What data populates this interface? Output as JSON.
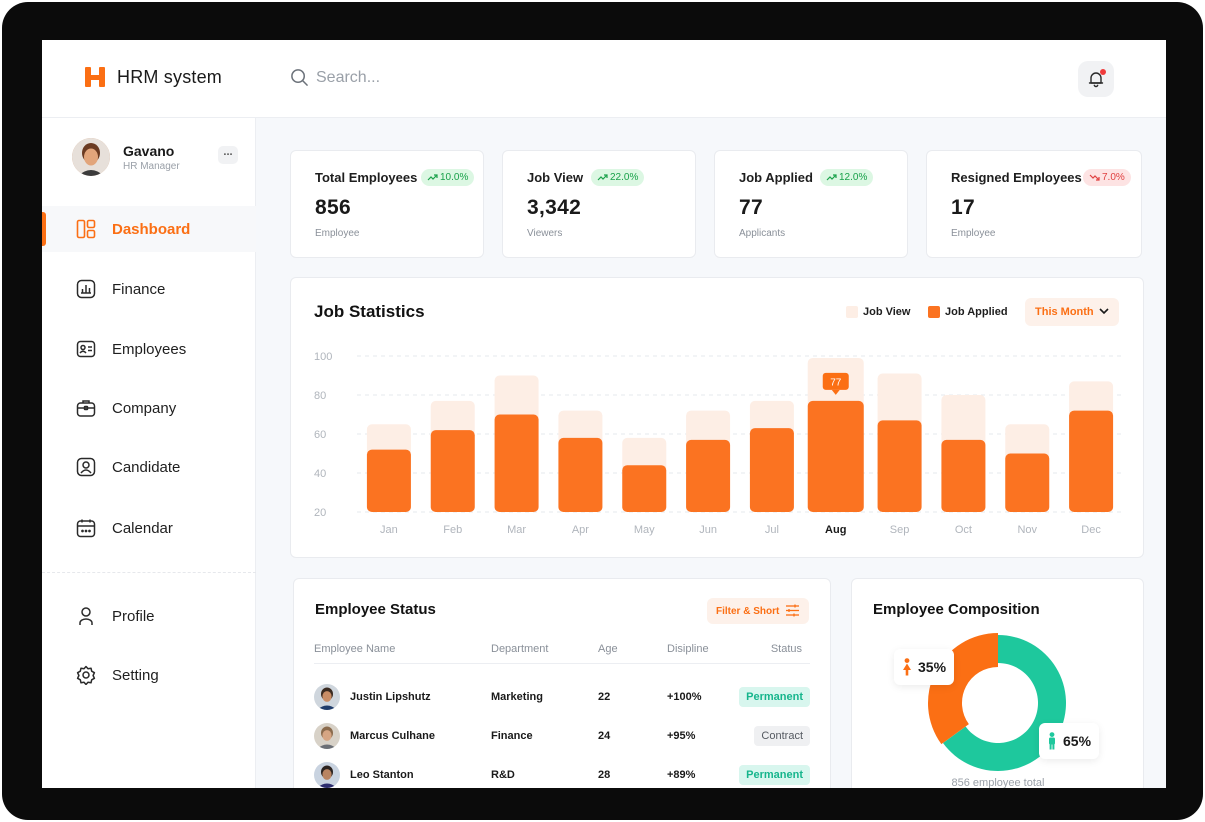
{
  "app": {
    "name": "HRM system"
  },
  "search": {
    "placeholder": "Search..."
  },
  "user": {
    "name": "Gavano",
    "role": "HR Manager",
    "more": "..."
  },
  "nav": {
    "main": [
      {
        "label": "Dashboard",
        "icon": "dashboard-icon",
        "active": true
      },
      {
        "label": "Finance",
        "icon": "finance-icon"
      },
      {
        "label": "Employees",
        "icon": "employees-icon"
      },
      {
        "label": "Company",
        "icon": "company-icon"
      },
      {
        "label": "Candidate",
        "icon": "candidate-icon"
      },
      {
        "label": "Calendar",
        "icon": "calendar-icon"
      }
    ],
    "bottom": [
      {
        "label": "Profile",
        "icon": "profile-icon"
      },
      {
        "label": "Setting",
        "icon": "gear-icon"
      }
    ]
  },
  "stats": [
    {
      "title": "Total Employees",
      "change": "10.0%",
      "trend": "up",
      "value": "856",
      "sub": "Employee"
    },
    {
      "title": "Job View",
      "change": "22.0%",
      "trend": "up",
      "value": "3,342",
      "sub": "Viewers"
    },
    {
      "title": "Job Applied",
      "change": "12.0%",
      "trend": "up",
      "value": "77",
      "sub": "Applicants"
    },
    {
      "title": "Resigned Employees",
      "change": "7.0%",
      "trend": "down",
      "value": "17",
      "sub": "Employee"
    }
  ],
  "job_stats": {
    "title": "Job Statistics",
    "legend": {
      "view": "Job View",
      "applied": "Job Applied"
    },
    "period": "This Month",
    "highlight_label": "77"
  },
  "chart_data": {
    "type": "bar",
    "title": "Job Statistics",
    "categories": [
      "Jan",
      "Feb",
      "Mar",
      "Apr",
      "May",
      "Jun",
      "Jul",
      "Aug",
      "Sep",
      "Oct",
      "Nov",
      "Dec"
    ],
    "series": [
      {
        "name": "Job View",
        "values": [
          65,
          77,
          90,
          72,
          58,
          72,
          77,
          99,
          91,
          80,
          65,
          87
        ]
      },
      {
        "name": "Job Applied",
        "values": [
          52,
          62,
          70,
          58,
          44,
          57,
          63,
          77,
          67,
          57,
          50,
          72
        ]
      }
    ],
    "yticks": [
      20,
      40,
      60,
      80,
      100
    ],
    "ylim": [
      20,
      100
    ],
    "highlight": "Aug",
    "grid": true,
    "legend": "top-right",
    "colors": {
      "view": "#fdeee5",
      "applied": "#fb7321"
    }
  },
  "employee_status": {
    "title": "Employee Status",
    "filter_label": "Filter & Short",
    "columns": [
      "Employee Name",
      "Department",
      "Age",
      "Disipline",
      "Status"
    ],
    "rows": [
      {
        "name": "Justin Lipshutz",
        "department": "Marketing",
        "age": "22",
        "discipline": "+100%",
        "status": "Permanent"
      },
      {
        "name": "Marcus Culhane",
        "department": "Finance",
        "age": "24",
        "discipline": "+95%",
        "status": "Contract"
      },
      {
        "name": "Leo Stanton",
        "department": "R&D",
        "age": "28",
        "discipline": "+89%",
        "status": "Permanent"
      }
    ]
  },
  "composition": {
    "title": "Employee Composition",
    "female": "35%",
    "male": "65%",
    "female_value": 35,
    "male_value": 65,
    "footer": "856 employee total",
    "colors": {
      "female": "#fb6f14",
      "male": "#1ec89d"
    }
  }
}
